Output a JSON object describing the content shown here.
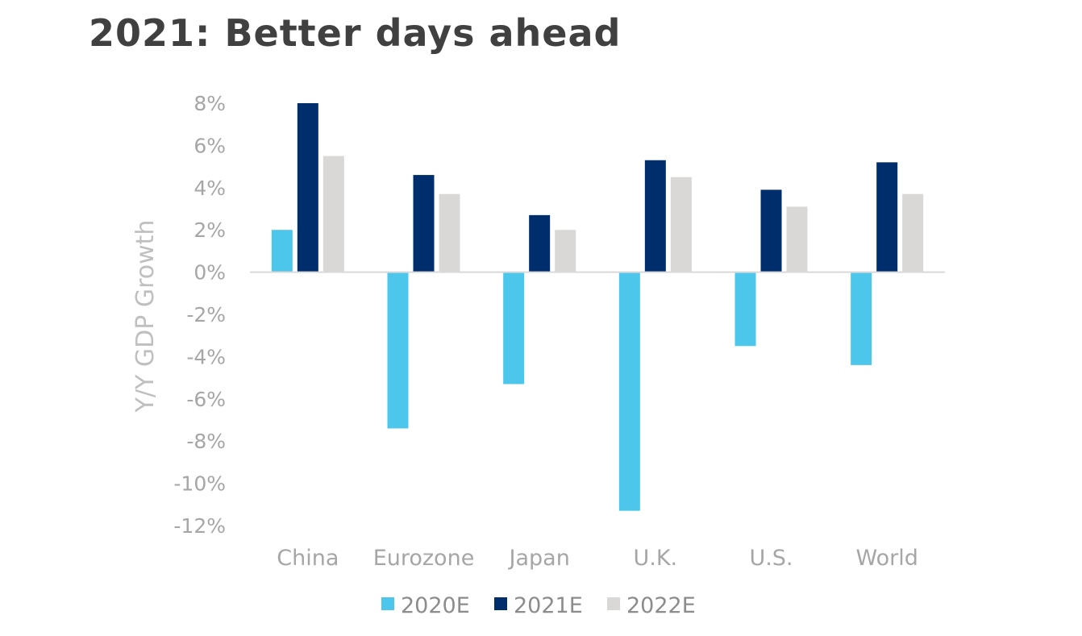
{
  "title": "2021: Better days ahead",
  "chart_data": {
    "type": "bar",
    "title": "2021: Better days ahead",
    "xlabel": "",
    "ylabel": "Y/Y GDP Growth",
    "categories": [
      "China",
      "Eurozone",
      "Japan",
      "U.K.",
      "U.S.",
      "World"
    ],
    "series": [
      {
        "name": "2020E",
        "color": "#4cc6ea",
        "values": [
          2.0,
          -7.4,
          -5.3,
          -11.3,
          -3.5,
          -4.4
        ]
      },
      {
        "name": "2021E",
        "color": "#002e6d",
        "values": [
          8.0,
          4.6,
          2.7,
          5.3,
          3.9,
          5.2
        ]
      },
      {
        "name": "2022E",
        "color": "#d9d8d6",
        "values": [
          5.5,
          3.7,
          2.0,
          4.5,
          3.1,
          3.7
        ]
      }
    ],
    "ylim": [
      -12,
      8
    ],
    "yticks": [
      8,
      6,
      4,
      2,
      0,
      -2,
      -4,
      -6,
      -8,
      -10,
      -12
    ],
    "ytick_labels": [
      "8%",
      "6%",
      "4%",
      "2%",
      "0%",
      "-2%",
      "-4%",
      "-6%",
      "-8%",
      "-10%",
      "-12%"
    ],
    "grid": false,
    "legend_position": "bottom"
  }
}
